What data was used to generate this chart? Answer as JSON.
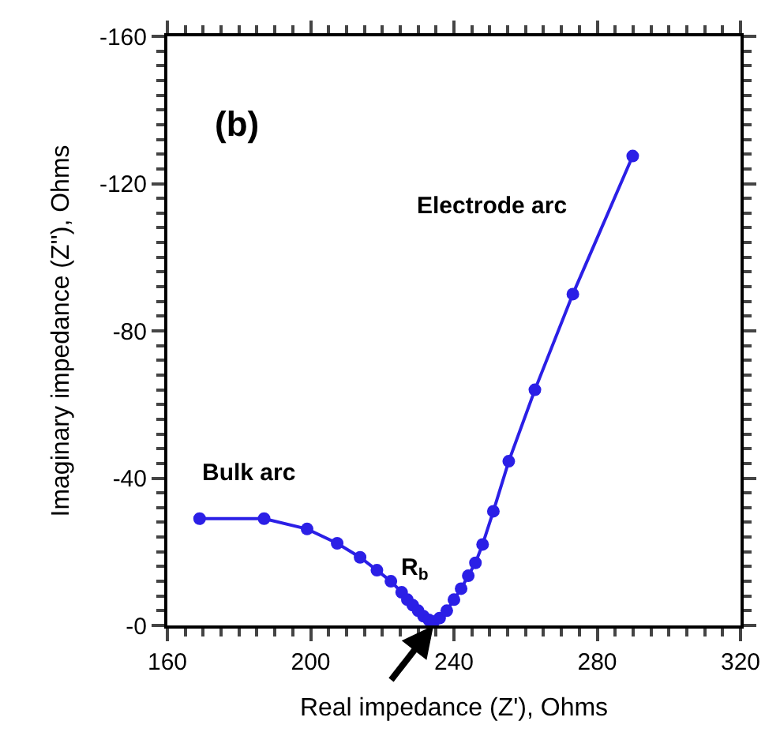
{
  "chart_data": {
    "type": "line",
    "xlabel": "Real impedance (Z'), Ohms",
    "ylabel": "Imaginary impedance (Z''), Ohms",
    "x": [
      169,
      187,
      199,
      207.4,
      213.8,
      218.5,
      222.4,
      225.4,
      227,
      228.5,
      230,
      231.5,
      233,
      234.3,
      236,
      238,
      240,
      242,
      244,
      246,
      248,
      251,
      255.3,
      262.6,
      273.2,
      289.9
    ],
    "series": [
      {
        "color": "#2b1fe6",
        "values": [
          -29,
          -29,
          -26.2,
          -22.3,
          -18.5,
          -15,
          -12,
          -9,
          -7,
          -5.5,
          -4,
          -2.5,
          -1.5,
          -1,
          -2,
          -4,
          -7,
          -10,
          -13.5,
          -17,
          -22,
          -31,
          -44.6,
          -64,
          -90,
          -127.5
        ]
      }
    ],
    "xlim": [
      160,
      320
    ],
    "xticks": [
      160,
      200,
      240,
      280,
      320
    ],
    "ylim": [
      0,
      -160
    ],
    "yticks": [
      {
        "value": 0,
        "label": "-0"
      },
      -40,
      -80,
      -120,
      -160
    ],
    "marker": "circle",
    "line_style": "solid",
    "annotations": [
      "(b)",
      "Bulk arc",
      "Electrode arc",
      {
        "text": "R$_{b}$",
        "x": 234.3,
        "y": 0
      }
    ]
  }
}
